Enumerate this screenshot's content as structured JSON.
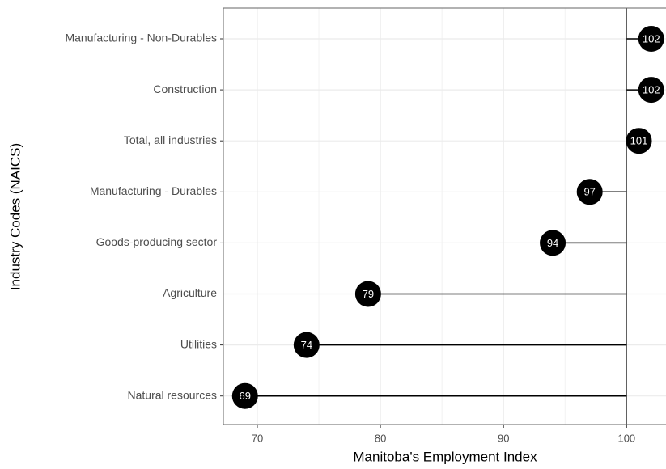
{
  "chart_data": {
    "type": "lollipop",
    "categories": [
      "Manufacturing - Non-Durables",
      "Construction",
      "Total, all industries",
      "Manufacturing - Durables",
      "Goods-producing sector",
      "Agriculture",
      "Utilities",
      "Natural resources"
    ],
    "values": [
      102,
      102,
      101,
      97,
      94,
      79,
      74,
      69
    ],
    "reference": 100,
    "color": "#000000",
    "x_label": "Manitoba's Employment Index",
    "y_label": "Industry Codes (NAICS)",
    "xlim": [
      67.24,
      103.2
    ],
    "xticks": [
      70,
      80,
      90,
      100
    ],
    "minor_xticks": [
      75,
      85,
      95
    ],
    "grid": true
  }
}
